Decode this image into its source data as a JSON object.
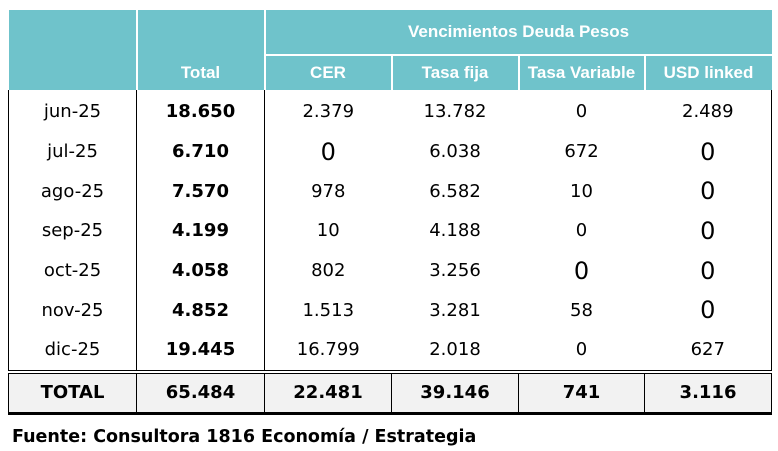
{
  "table": {
    "group_header": "Vencimientos Deuda Pesos",
    "columns": [
      "",
      "Total",
      "CER",
      "Tasa fija",
      "Tasa Variable",
      "USD linked"
    ],
    "rows": [
      {
        "month": "jun-25",
        "total": "18.650",
        "cer": "2.379",
        "tasa_fija": "13.782",
        "tasa_variable": "0",
        "usd_linked": "2.489"
      },
      {
        "month": "jul-25",
        "total": "6.710",
        "cer": "0",
        "tasa_fija": "6.038",
        "tasa_variable": "672",
        "usd_linked": "0"
      },
      {
        "month": "ago-25",
        "total": "7.570",
        "cer": "978",
        "tasa_fija": "6.582",
        "tasa_variable": "10",
        "usd_linked": "0"
      },
      {
        "month": "sep-25",
        "total": "4.199",
        "cer": "10",
        "tasa_fija": "4.188",
        "tasa_variable": "0",
        "usd_linked": "0"
      },
      {
        "month": "oct-25",
        "total": "4.058",
        "cer": "802",
        "tasa_fija": "3.256",
        "tasa_variable": "0",
        "usd_linked": "0"
      },
      {
        "month": "nov-25",
        "total": "4.852",
        "cer": "1.513",
        "tasa_fija": "3.281",
        "tasa_variable": "58",
        "usd_linked": "0"
      },
      {
        "month": "dic-25",
        "total": "19.445",
        "cer": "16.799",
        "tasa_fija": "2.018",
        "tasa_variable": "0",
        "usd_linked": "627"
      }
    ],
    "totals": {
      "label": "TOTAL",
      "total": "65.484",
      "cer": "22.481",
      "tasa_fija": "39.146",
      "tasa_variable": "741",
      "usd_linked": "3.116"
    }
  },
  "source": "Fuente: Consultora 1816 Economía / Estrategia",
  "colors": {
    "header_bg": "#6fc3cb",
    "header_text": "#ffffff",
    "total_row_bg": "#f2f2f2"
  }
}
